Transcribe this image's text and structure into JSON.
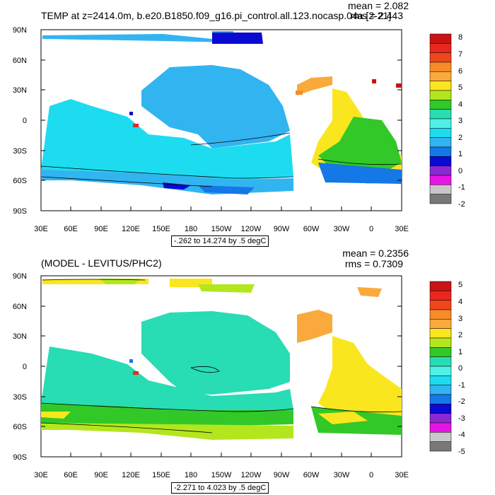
{
  "panels": [
    {
      "title": "TEMP at z=2414.0m, b.e20.B1850.f09_g16.pi_control.all.123.nocasp.04a [2-21]",
      "mean_label": "mean = 2.082",
      "rms_label": "rms = 2.443",
      "range_note": "-.262 to 14.274 by .5 degC",
      "colorbar_labels": [
        "8",
        "7",
        "6",
        "5",
        "4",
        "3",
        "2",
        "1",
        "0",
        "-1",
        "-2"
      ]
    },
    {
      "title": "(MODEL - LEVITUS/PHC2)",
      "mean_label": "mean = 0.2356",
      "rms_label": "rms = 0.7309",
      "range_note": "-2.271 to 4.023 by .5 degC",
      "colorbar_labels": [
        "5",
        "4",
        "3",
        "2",
        "1",
        "0",
        "-1",
        "-2",
        "-3",
        "-4",
        "-5"
      ]
    }
  ],
  "lat_labels": [
    "90N",
    "60N",
    "30N",
    "0",
    "30S",
    "60S",
    "90S"
  ],
  "lon_labels": [
    "30E",
    "60E",
    "90E",
    "120E",
    "150E",
    "180",
    "150W",
    "120W",
    "90W",
    "60W",
    "30W",
    "0",
    "30E"
  ],
  "colorbar_colors": [
    "#c81414",
    "#e8281e",
    "#f0461e",
    "#f58c28",
    "#faaa3c",
    "#fae61e",
    "#b4e61e",
    "#32c828",
    "#28dcb4",
    "#50f0e6",
    "#1edcf0",
    "#32b4f0",
    "#1478e6",
    "#0a0ad2",
    "#8c28d2",
    "#e614e6",
    "#c8c8c8",
    "#787878"
  ],
  "palette": {
    "sky": "#1edcf0",
    "cyan": "#50f0e6",
    "blue": "#32b4f0",
    "navy": "#1478e6",
    "deep": "#0a0ad2",
    "yellow": "#fae61e",
    "orange": "#faaa3c",
    "green": "#32c828",
    "lgreen": "#b4e61e",
    "red": "#e8281e",
    "teal": "#28dcb4"
  }
}
